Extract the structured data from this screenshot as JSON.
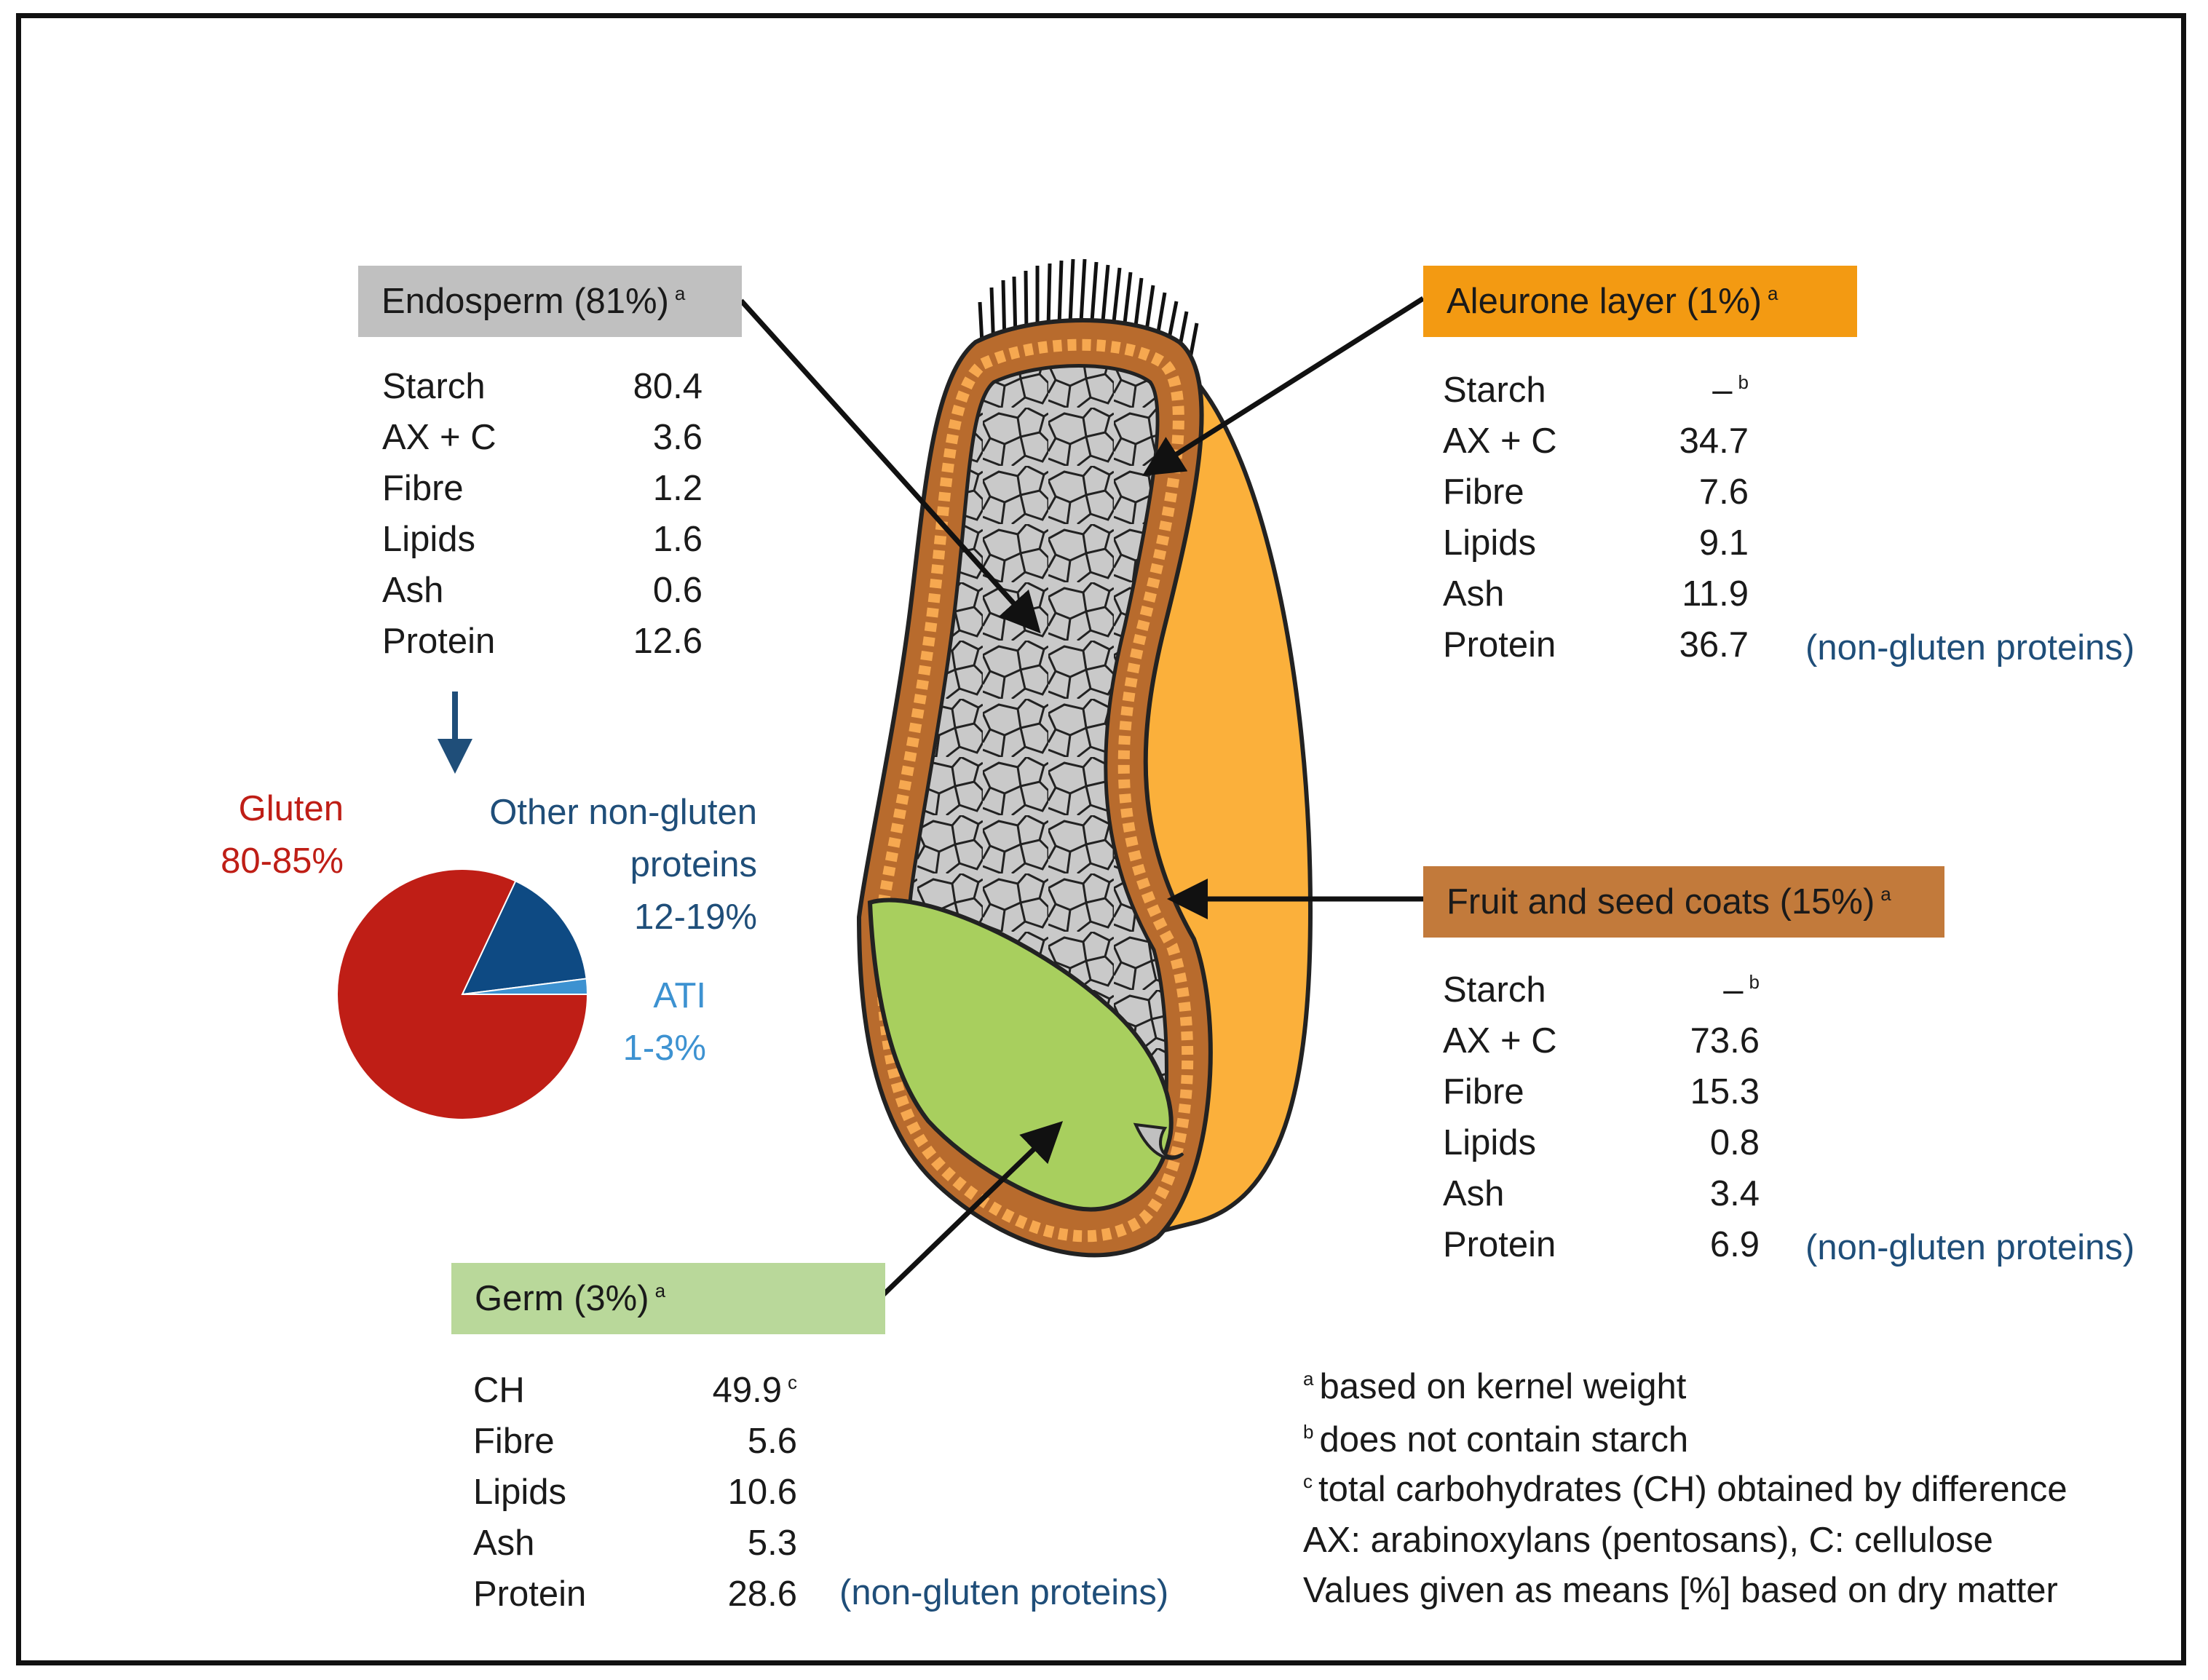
{
  "sections": {
    "endosperm": {
      "title": "Endosperm (81%)",
      "sup": "a",
      "rows": [
        {
          "label": "Starch",
          "value": "80.4"
        },
        {
          "label": "AX + C",
          "value": "3.6"
        },
        {
          "label": "Fibre",
          "value": "1.2"
        },
        {
          "label": "Lipids",
          "value": "1.6"
        },
        {
          "label": "Ash",
          "value": "0.6"
        },
        {
          "label": "Protein",
          "value": "12.6"
        }
      ]
    },
    "aleurone": {
      "title": "Aleurone layer (1%)",
      "sup": "a",
      "starch_label": "Starch",
      "starch_value": "–",
      "starch_sup": "b",
      "rows": [
        {
          "label": "AX + C",
          "value": "34.7"
        },
        {
          "label": "Fibre",
          "value": "7.6"
        },
        {
          "label": "Lipids",
          "value": "9.1"
        },
        {
          "label": "Ash",
          "value": "11.9"
        },
        {
          "label": "Protein",
          "value": "36.7"
        }
      ],
      "note": "(non-gluten proteins)"
    },
    "coats": {
      "title": "Fruit and seed coats (15%)",
      "sup": "a",
      "starch_label": "Starch",
      "starch_value": "–",
      "starch_sup": "b",
      "rows": [
        {
          "label": "AX + C",
          "value": "73.6"
        },
        {
          "label": "Fibre",
          "value": "15.3"
        },
        {
          "label": "Lipids",
          "value": "0.8"
        },
        {
          "label": "Ash",
          "value": "3.4"
        },
        {
          "label": "Protein",
          "value": "6.9"
        }
      ],
      "note": "(non-gluten proteins)"
    },
    "germ": {
      "title": "Germ (3%)",
      "sup": "a",
      "ch_label": "CH",
      "ch_value": "49.9",
      "ch_sup": "c",
      "rows": [
        {
          "label": "Fibre",
          "value": "5.6"
        },
        {
          "label": "Lipids",
          "value": "10.6"
        },
        {
          "label": "Ash",
          "value": "5.3"
        },
        {
          "label": "Protein",
          "value": "28.6"
        }
      ],
      "note": "(non-gluten proteins)"
    }
  },
  "protein_pie": {
    "gluten": {
      "label": "Gluten",
      "range": "80-85%",
      "fraction": 0.82
    },
    "other": {
      "label_line1": "Other non-gluten",
      "label_line2": "proteins",
      "range": "12-19%",
      "fraction": 0.16
    },
    "ati": {
      "label": "ATI",
      "range": "1-3%",
      "fraction": 0.02
    }
  },
  "footnotes": [
    {
      "sup": "a",
      "text": "based on kernel weight"
    },
    {
      "sup": "b",
      "text": "does not contain starch"
    },
    {
      "sup": "c",
      "text": "total carbohydrates (CH) obtained by difference"
    },
    {
      "sup": "",
      "text": "AX: arabinoxylans (pentosans), C: cellulose"
    },
    {
      "sup": "",
      "text": "Values given as means [%] based on dry matter"
    }
  ],
  "colors": {
    "endosperm_box": "#c0c0c0",
    "aleurone_box": "#f39a12",
    "coats_box": "#c27a3b",
    "germ_box": "#b9d89a",
    "gluten": "#bf1e16",
    "other_proteins": "#0e4a83",
    "ati": "#3d92d1",
    "blue_text": "#1f4e79",
    "germ_fill": "#a8cf5e",
    "pericarp": "#fbb03b",
    "coat": "#b86b2d",
    "endosperm_fill": "#c8c8c8"
  }
}
